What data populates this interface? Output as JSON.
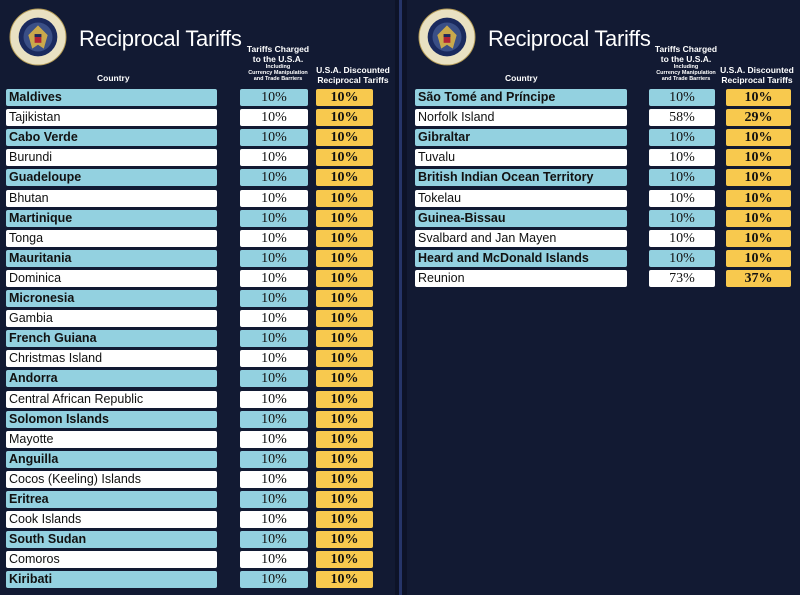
{
  "header": {
    "title": "Reciprocal Tariffs",
    "col_country": "Country",
    "col_charged_line1": "Tariffs Charged",
    "col_charged_line2": "to the U.S.A.",
    "col_charged_sub1": "Including",
    "col_charged_sub2": "Currency Manipulation",
    "col_charged_sub3": "and Trade Barriers",
    "col_discount_line1": "U.S.A. Discounted",
    "col_discount_line2": "Reciprocal Tariffs",
    "seal_text": "SEAL OF THE PRESIDENT OF THE UNITED STATES"
  },
  "colors": {
    "blue_row": "#93d1e0",
    "white_row": "#ffffff",
    "discount": "#f8c94e",
    "background": "#121a33"
  },
  "chart_data": [
    {
      "type": "table",
      "title": "Reciprocal Tariffs",
      "columns": [
        "Country",
        "Tariffs Charged to the U.S.A. Including Currency Manipulation and Trade Barriers",
        "U.S.A. Discounted Reciprocal Tariffs"
      ],
      "rows": [
        {
          "country": "Maldives",
          "charged": "10%",
          "discounted": "10%"
        },
        {
          "country": "Tajikistan",
          "charged": "10%",
          "discounted": "10%"
        },
        {
          "country": "Cabo Verde",
          "charged": "10%",
          "discounted": "10%"
        },
        {
          "country": "Burundi",
          "charged": "10%",
          "discounted": "10%"
        },
        {
          "country": "Guadeloupe",
          "charged": "10%",
          "discounted": "10%"
        },
        {
          "country": "Bhutan",
          "charged": "10%",
          "discounted": "10%"
        },
        {
          "country": "Martinique",
          "charged": "10%",
          "discounted": "10%"
        },
        {
          "country": "Tonga",
          "charged": "10%",
          "discounted": "10%"
        },
        {
          "country": "Mauritania",
          "charged": "10%",
          "discounted": "10%"
        },
        {
          "country": "Dominica",
          "charged": "10%",
          "discounted": "10%"
        },
        {
          "country": "Micronesia",
          "charged": "10%",
          "discounted": "10%"
        },
        {
          "country": "Gambia",
          "charged": "10%",
          "discounted": "10%"
        },
        {
          "country": "French Guiana",
          "charged": "10%",
          "discounted": "10%"
        },
        {
          "country": "Christmas Island",
          "charged": "10%",
          "discounted": "10%"
        },
        {
          "country": "Andorra",
          "charged": "10%",
          "discounted": "10%"
        },
        {
          "country": "Central African Republic",
          "charged": "10%",
          "discounted": "10%"
        },
        {
          "country": "Solomon Islands",
          "charged": "10%",
          "discounted": "10%"
        },
        {
          "country": "Mayotte",
          "charged": "10%",
          "discounted": "10%"
        },
        {
          "country": "Anguilla",
          "charged": "10%",
          "discounted": "10%"
        },
        {
          "country": "Cocos (Keeling) Islands",
          "charged": "10%",
          "discounted": "10%"
        },
        {
          "country": "Eritrea",
          "charged": "10%",
          "discounted": "10%"
        },
        {
          "country": "Cook Islands",
          "charged": "10%",
          "discounted": "10%"
        },
        {
          "country": "South Sudan",
          "charged": "10%",
          "discounted": "10%"
        },
        {
          "country": "Comoros",
          "charged": "10%",
          "discounted": "10%"
        },
        {
          "country": "Kiribati",
          "charged": "10%",
          "discounted": "10%"
        }
      ]
    },
    {
      "type": "table",
      "title": "Reciprocal Tariffs",
      "columns": [
        "Country",
        "Tariffs Charged to the U.S.A. Including Currency Manipulation and Trade Barriers",
        "U.S.A. Discounted Reciprocal Tariffs"
      ],
      "rows": [
        {
          "country": "São Tomé and Príncipe",
          "charged": "10%",
          "discounted": "10%"
        },
        {
          "country": "Norfolk Island",
          "charged": "58%",
          "discounted": "29%"
        },
        {
          "country": "Gibraltar",
          "charged": "10%",
          "discounted": "10%"
        },
        {
          "country": "Tuvalu",
          "charged": "10%",
          "discounted": "10%"
        },
        {
          "country": "British Indian Ocean Territory",
          "charged": "10%",
          "discounted": "10%"
        },
        {
          "country": "Tokelau",
          "charged": "10%",
          "discounted": "10%"
        },
        {
          "country": "Guinea-Bissau",
          "charged": "10%",
          "discounted": "10%"
        },
        {
          "country": "Svalbard and Jan Mayen",
          "charged": "10%",
          "discounted": "10%"
        },
        {
          "country": "Heard and McDonald Islands",
          "charged": "10%",
          "discounted": "10%"
        },
        {
          "country": "Reunion",
          "charged": "73%",
          "discounted": "37%"
        }
      ]
    }
  ]
}
